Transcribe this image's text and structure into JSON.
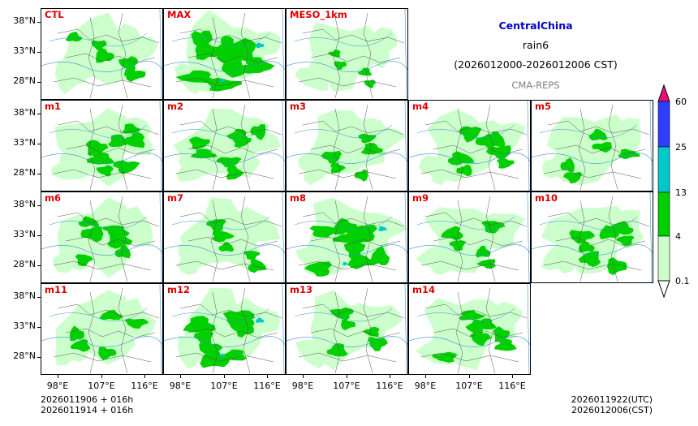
{
  "header": {
    "region": "CentralChina",
    "variable": "rain6",
    "period": "(2026012000-2026012006 CST)",
    "source": "CMA-REPS"
  },
  "panels": [
    {
      "label": "CTL",
      "intensity": 0.45
    },
    {
      "label": "MAX",
      "intensity": 0.9
    },
    {
      "label": "MESO_1km",
      "intensity": 0.1
    },
    {
      "label": "m1",
      "intensity": 0.55
    },
    {
      "label": "m2",
      "intensity": 0.5
    },
    {
      "label": "m3",
      "intensity": 0.35
    },
    {
      "label": "m4",
      "intensity": 0.55
    },
    {
      "label": "m5",
      "intensity": 0.4
    },
    {
      "label": "m6",
      "intensity": 0.5
    },
    {
      "label": "m7",
      "intensity": 0.4
    },
    {
      "label": "m8",
      "intensity": 0.75
    },
    {
      "label": "m9",
      "intensity": 0.4
    },
    {
      "label": "m10",
      "intensity": 0.55
    },
    {
      "label": "m11",
      "intensity": 0.45
    },
    {
      "label": "m12",
      "intensity": 0.7
    },
    {
      "label": "m13",
      "intensity": 0.45
    },
    {
      "label": "m14",
      "intensity": 0.5
    }
  ],
  "axes": {
    "y_labels": [
      "38°N",
      "33°N",
      "28°N"
    ],
    "x_labels": [
      "98°E",
      "107°E",
      "116°E"
    ]
  },
  "colorbar": {
    "labels": [
      "60",
      "25",
      "13",
      "4",
      "0.1"
    ],
    "colors": [
      "#e8117a",
      "#2e3cff",
      "#00c8c8",
      "#00d000",
      "#ccffcc"
    ]
  },
  "footer": {
    "left_line1": "2026011906  +  016h",
    "left_line2": "2026011914  +  016h",
    "right_line1": "2026011922(UTC)",
    "right_line2": "2026012006(CST)"
  },
  "colors": {
    "light": "#ccffcc",
    "green": "#00d000",
    "cyan": "#00c8c8",
    "blue": "#2e3cff",
    "label": "#e00000"
  }
}
